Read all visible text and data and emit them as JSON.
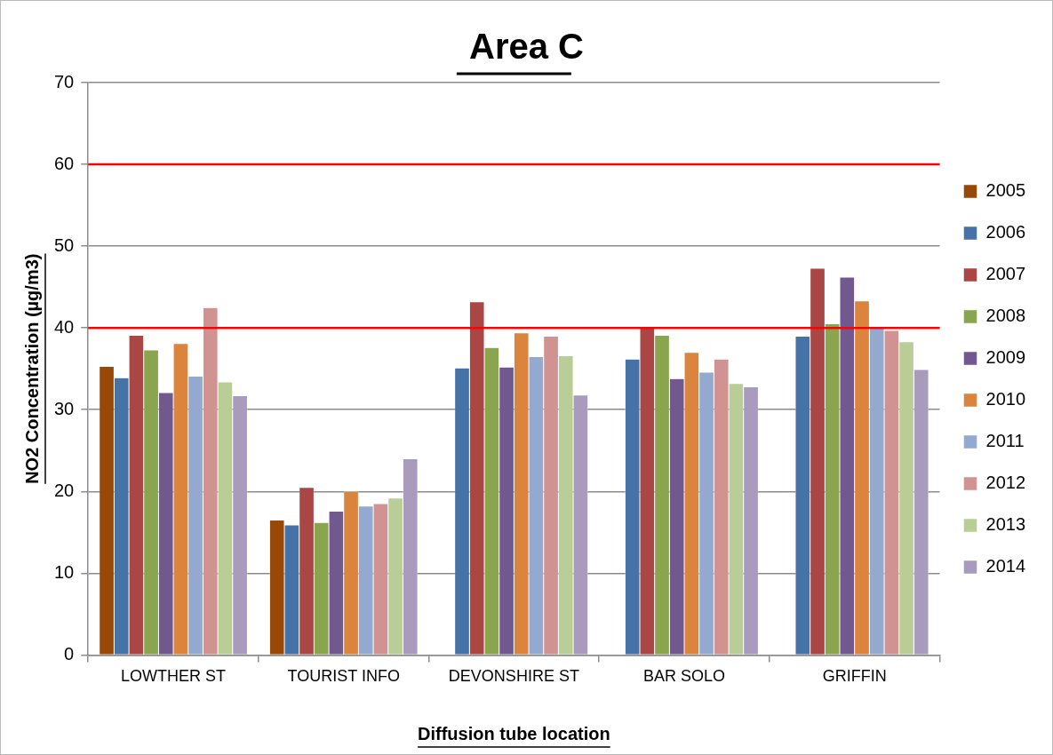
{
  "chart_data": {
    "type": "bar",
    "title": "Area C",
    "xlabel": "Diffusion tube location",
    "ylabel": "NO2 Concentration (µg/m3)",
    "categories": [
      "LOWTHER ST",
      "TOURIST INFO",
      "DEVONSHIRE ST",
      "BAR SOLO",
      "GRIFFIN"
    ],
    "series": [
      {
        "name": "2005",
        "color": "#984807",
        "values": [
          35.3,
          16.5,
          null,
          null,
          null
        ]
      },
      {
        "name": "2006",
        "color": "#4572a7",
        "values": [
          33.9,
          15.9,
          35.1,
          36.2,
          39.0
        ]
      },
      {
        "name": "2007",
        "color": "#aa4643",
        "values": [
          39.1,
          20.5,
          43.2,
          40.1,
          47.3
        ]
      },
      {
        "name": "2008",
        "color": "#89a54e",
        "values": [
          37.3,
          16.2,
          37.6,
          39.1,
          40.5
        ]
      },
      {
        "name": "2009",
        "color": "#71588f",
        "values": [
          32.1,
          17.6,
          35.2,
          33.8,
          46.2
        ]
      },
      {
        "name": "2010",
        "color": "#db843d",
        "values": [
          38.1,
          20.0,
          39.4,
          37.0,
          43.3
        ]
      },
      {
        "name": "2011",
        "color": "#93a9cf",
        "values": [
          34.1,
          18.2,
          36.5,
          34.6,
          40.0
        ]
      },
      {
        "name": "2012",
        "color": "#d19392",
        "values": [
          42.5,
          18.5,
          39.0,
          36.2,
          39.7
        ]
      },
      {
        "name": "2013",
        "color": "#b9cd96",
        "values": [
          33.4,
          19.2,
          36.6,
          33.2,
          38.3
        ]
      },
      {
        "name": "2014",
        "color": "#a99bbd",
        "values": [
          31.7,
          24.0,
          31.8,
          32.8,
          34.9
        ]
      }
    ],
    "ylim": [
      0,
      70
    ],
    "yticks": [
      0,
      10,
      20,
      30,
      40,
      50,
      60,
      70
    ],
    "grid": "y",
    "legend": "right",
    "ref_lines": [
      {
        "axis": "y",
        "value": 40,
        "color": "#ff0000"
      },
      {
        "axis": "y",
        "value": 60,
        "color": "#ff0000"
      }
    ]
  }
}
